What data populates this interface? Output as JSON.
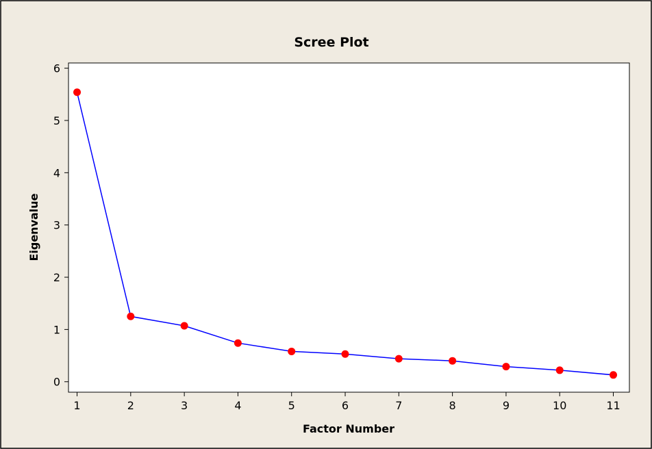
{
  "colors": {
    "figure_background": "#f0ebe1",
    "plot_background": "#ffffff",
    "line": "#0000ff",
    "marker": "#ff0000"
  },
  "chart_data": {
    "type": "line",
    "title": "Scree Plot",
    "xlabel": "Factor Number",
    "ylabel": "Eigenvalue",
    "x": [
      1,
      2,
      3,
      4,
      5,
      6,
      7,
      8,
      9,
      10,
      11
    ],
    "values": [
      5.54,
      1.25,
      1.07,
      0.74,
      0.58,
      0.53,
      0.44,
      0.4,
      0.29,
      0.22,
      0.13
    ],
    "x_ticks": [
      1,
      2,
      3,
      4,
      5,
      6,
      7,
      8,
      9,
      10,
      11
    ],
    "y_ticks": [
      0,
      1,
      2,
      3,
      4,
      5,
      6
    ],
    "xlim": [
      0.84,
      11.3
    ],
    "ylim": [
      -0.2,
      6.1
    ],
    "grid": false,
    "legend": "none",
    "markers": true
  }
}
